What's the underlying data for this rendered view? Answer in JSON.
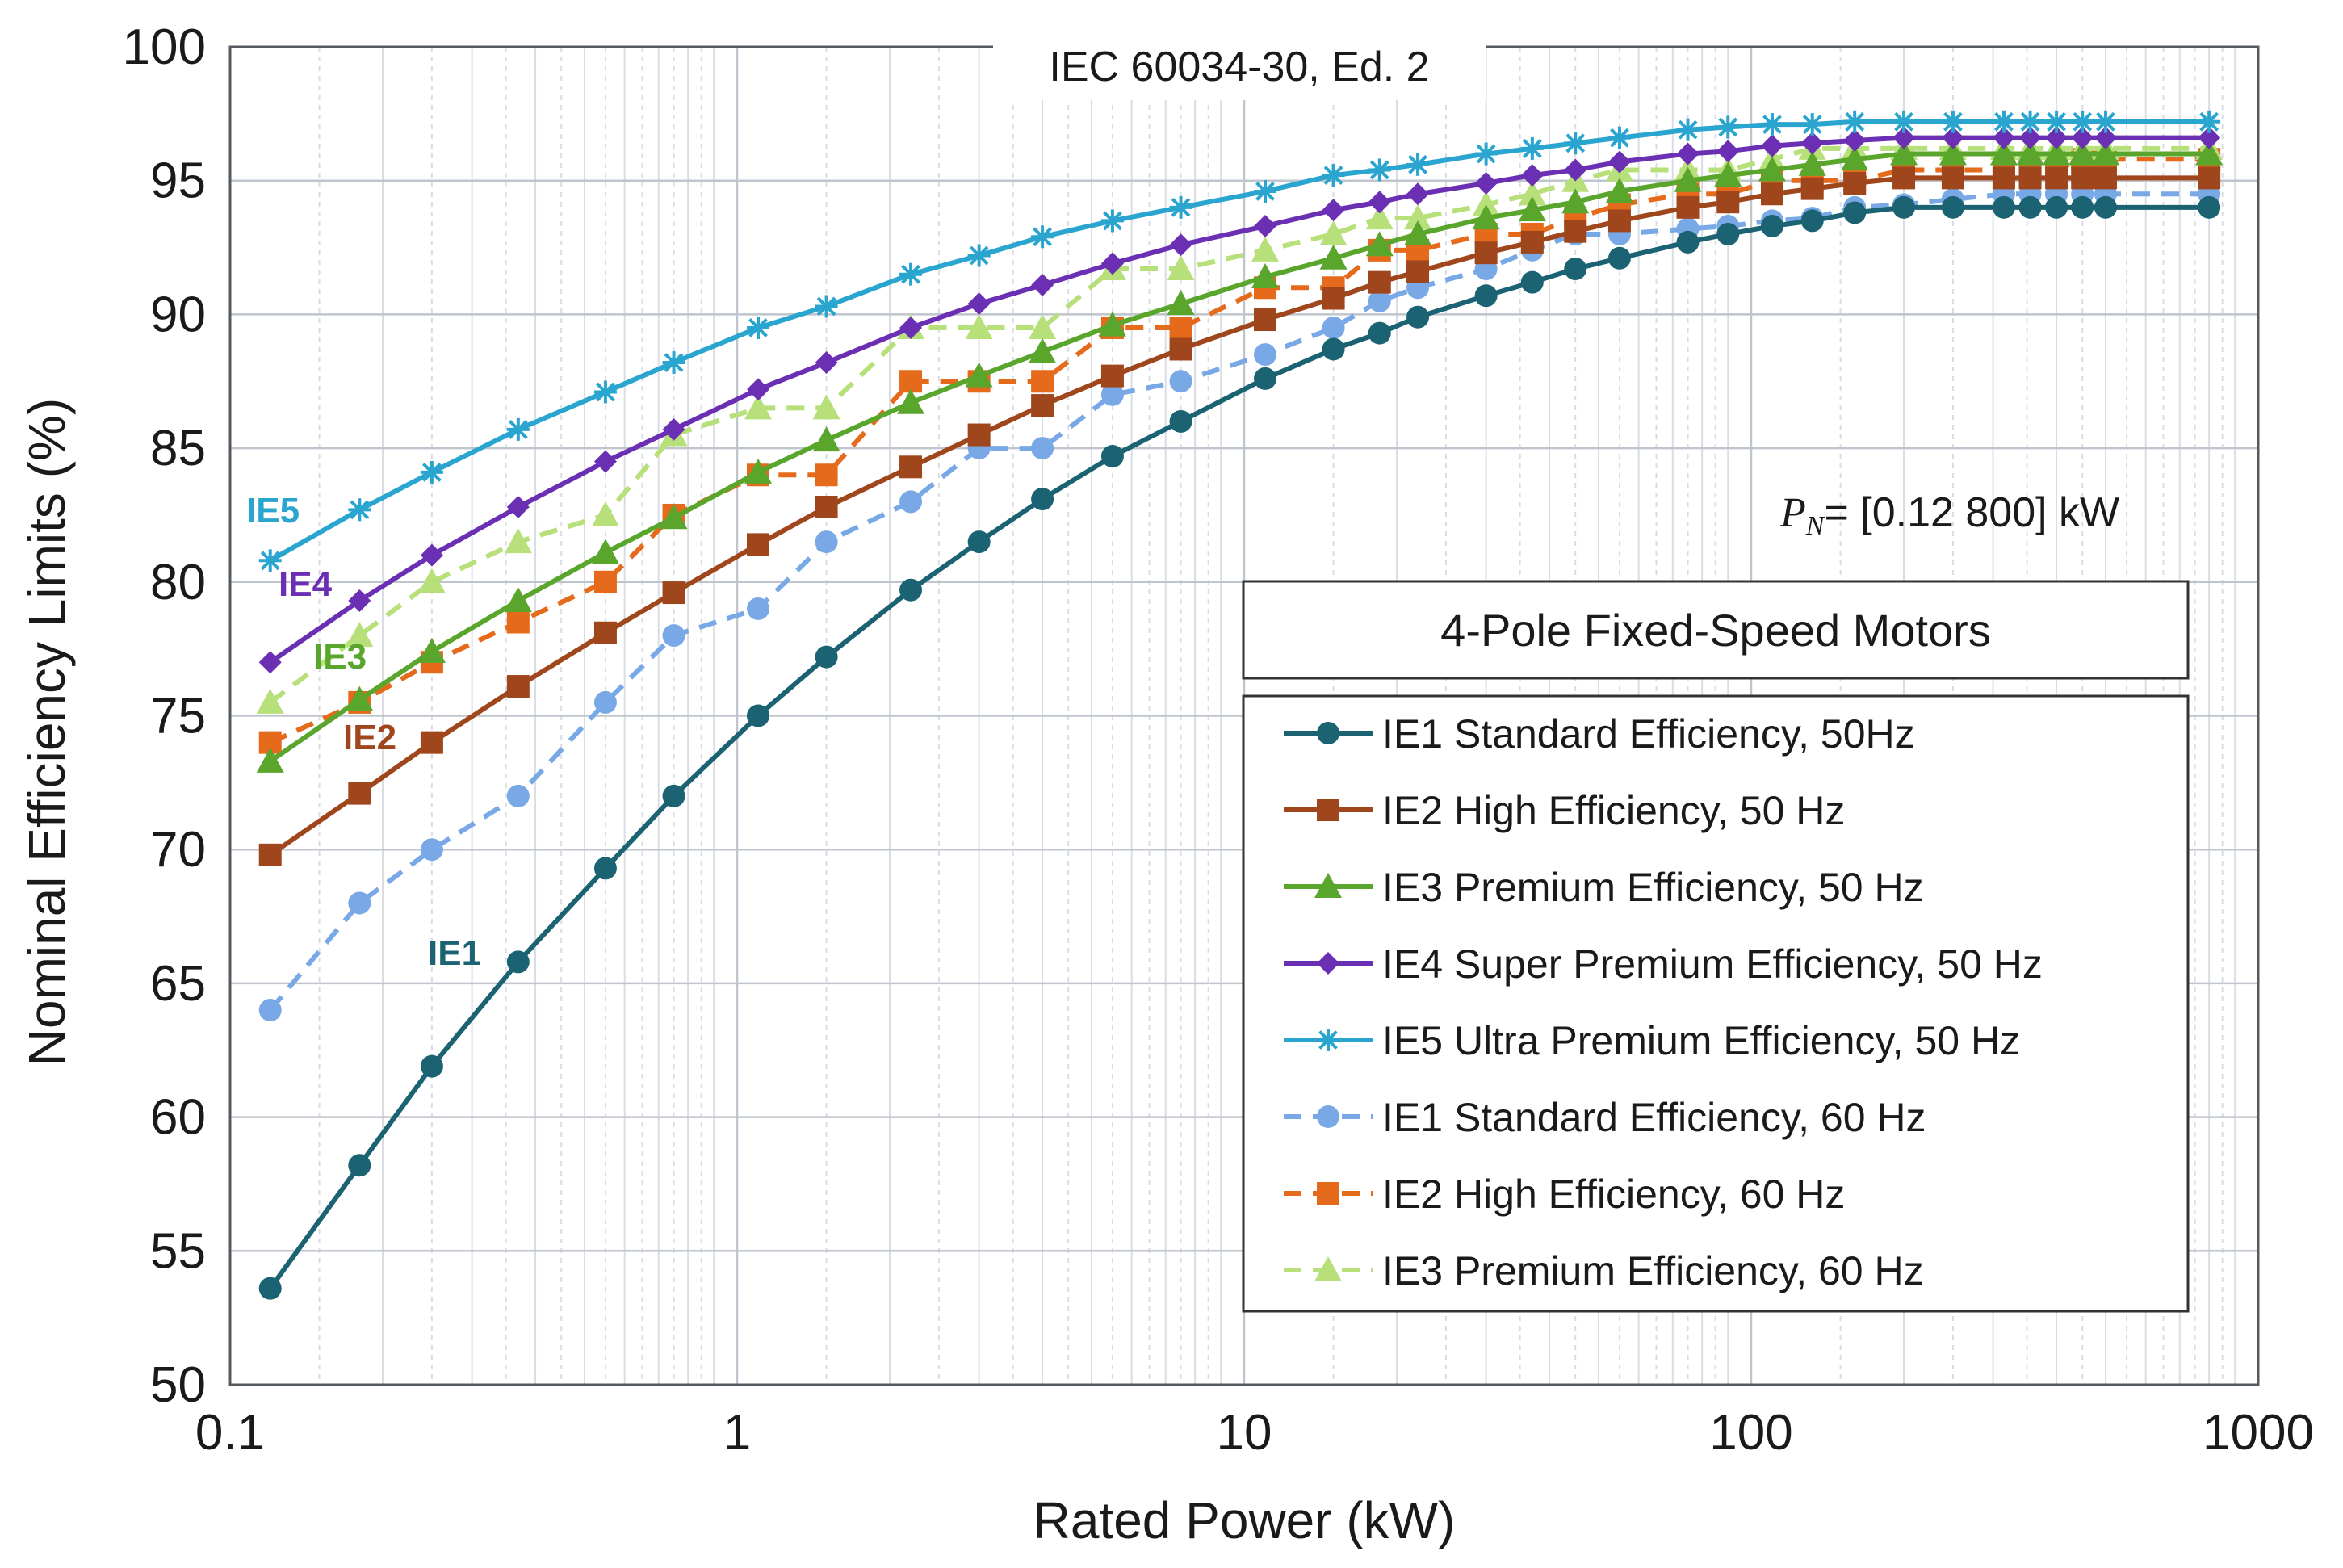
{
  "chart_data": {
    "type": "line",
    "title": "IEC 60034-30, Ed. 2",
    "xlabel": "Rated Power (kW)",
    "ylabel": "Nominal Efficiency Limits (%)",
    "x_scale": "log",
    "xlim": [
      0.1,
      1000
    ],
    "ylim": [
      50,
      100
    ],
    "x_ticks": [
      0.1,
      1,
      10,
      100,
      1000
    ],
    "x_tick_labels": [
      "0.1",
      "1",
      "10",
      "100",
      "1000"
    ],
    "y_ticks": [
      50,
      55,
      60,
      65,
      70,
      75,
      80,
      85,
      90,
      95,
      100
    ],
    "y_tick_labels": [
      "50",
      "55",
      "60",
      "65",
      "70",
      "75",
      "80",
      "85",
      "90",
      "95",
      "100"
    ],
    "grid": true,
    "legend_title": "4-Pole Fixed-Speed Motors",
    "legend_position": "bottom-right",
    "range_note": "= [0.12  800] kW",
    "range_symbol": "P",
    "range_symbol_sub": "N",
    "x": [
      0.12,
      0.18,
      0.25,
      0.37,
      0.55,
      0.75,
      1.1,
      1.5,
      2.2,
      3,
      4,
      5.5,
      7.5,
      11,
      15,
      18.5,
      22,
      30,
      37,
      45,
      55,
      75,
      90,
      110,
      132,
      160,
      200,
      250,
      315,
      355,
      400,
      450,
      500,
      800
    ],
    "series": [
      {
        "name": "IE1 Standard Efficiency, 50Hz",
        "annotation": "IE1",
        "color": "#1b6273",
        "dash": "solid",
        "marker": "circle",
        "values": [
          53.6,
          58.2,
          61.9,
          65.8,
          69.3,
          72.0,
          75.0,
          77.2,
          79.7,
          81.5,
          83.1,
          84.7,
          86.0,
          87.6,
          88.7,
          89.3,
          89.9,
          90.7,
          91.2,
          91.7,
          92.1,
          92.7,
          93.0,
          93.3,
          93.5,
          93.8,
          94.0,
          94.0,
          94.0,
          94.0,
          94.0,
          94.0,
          94.0,
          94.0
        ]
      },
      {
        "name": "IE2 High Efficiency, 50 Hz",
        "annotation": "IE2",
        "color": "#a0461c",
        "dash": "solid",
        "marker": "square",
        "values": [
          69.8,
          72.1,
          74.0,
          76.1,
          78.1,
          79.6,
          81.4,
          82.8,
          84.3,
          85.5,
          86.6,
          87.7,
          88.7,
          89.8,
          90.6,
          91.2,
          91.6,
          92.3,
          92.7,
          93.1,
          93.5,
          94.0,
          94.2,
          94.5,
          94.7,
          94.9,
          95.1,
          95.1,
          95.1,
          95.1,
          95.1,
          95.1,
          95.1,
          95.1
        ]
      },
      {
        "name": "IE3 Premium Efficiency, 50 Hz",
        "annotation": "IE3",
        "color": "#5aa62d",
        "dash": "solid",
        "marker": "triangle",
        "values": [
          73.3,
          75.6,
          77.4,
          79.3,
          81.1,
          82.4,
          84.1,
          85.3,
          86.7,
          87.7,
          88.6,
          89.6,
          90.4,
          91.4,
          92.1,
          92.6,
          93.0,
          93.6,
          93.9,
          94.2,
          94.6,
          95.0,
          95.2,
          95.4,
          95.6,
          95.8,
          96.0,
          96.0,
          96.0,
          96.0,
          96.0,
          96.0,
          96.0,
          96.0
        ]
      },
      {
        "name": "IE4 Super Premium Efficiency, 50 Hz",
        "annotation": "IE4",
        "color": "#6b2fb3",
        "dash": "solid",
        "marker": "diamond",
        "values": [
          77.0,
          79.3,
          81.0,
          82.8,
          84.5,
          85.7,
          87.2,
          88.2,
          89.5,
          90.4,
          91.1,
          91.9,
          92.6,
          93.3,
          93.9,
          94.2,
          94.5,
          94.9,
          95.2,
          95.4,
          95.7,
          96.0,
          96.1,
          96.3,
          96.4,
          96.5,
          96.6,
          96.6,
          96.6,
          96.6,
          96.6,
          96.6,
          96.6,
          96.6
        ]
      },
      {
        "name": "IE5 Ultra Premium Efficiency, 50 Hz",
        "annotation": "IE5",
        "color": "#2aa5cf",
        "dash": "solid",
        "marker": "star",
        "values": [
          80.8,
          82.7,
          84.1,
          85.7,
          87.1,
          88.2,
          89.5,
          90.3,
          91.5,
          92.2,
          92.9,
          93.5,
          94.0,
          94.6,
          95.2,
          95.4,
          95.6,
          96.0,
          96.2,
          96.4,
          96.6,
          96.9,
          97.0,
          97.1,
          97.1,
          97.2,
          97.2,
          97.2,
          97.2,
          97.2,
          97.2,
          97.2,
          97.2,
          97.2
        ]
      },
      {
        "name": "IE1 Standard Efficiency, 60 Hz",
        "color": "#79a8e6",
        "dash": "dashed",
        "marker": "circle",
        "values": [
          64.0,
          68.0,
          70.0,
          72.0,
          75.5,
          78.0,
          79.0,
          81.5,
          83.0,
          85.0,
          85.0,
          87.0,
          87.5,
          88.5,
          89.5,
          90.5,
          91.0,
          91.7,
          92.4,
          93.0,
          93.0,
          93.2,
          93.3,
          93.5,
          93.6,
          94.0,
          94.1,
          94.3,
          94.5,
          94.5,
          94.5,
          94.5,
          94.5,
          94.5
        ]
      },
      {
        "name": "IE2 High Efficiency, 60 Hz",
        "color": "#e56a1b",
        "dash": "dashed",
        "marker": "square",
        "values": [
          74.0,
          75.5,
          77.0,
          78.5,
          80.0,
          82.5,
          84.0,
          84.0,
          87.5,
          87.5,
          87.5,
          89.5,
          89.5,
          91.0,
          91.0,
          92.4,
          92.4,
          93.0,
          93.0,
          93.6,
          94.1,
          94.5,
          94.5,
          95.0,
          95.0,
          95.0,
          95.4,
          95.4,
          95.4,
          95.4,
          95.4,
          95.8,
          95.8,
          95.8
        ]
      },
      {
        "name": "IE3 Premium Efficiency, 60 Hz",
        "color": "#b8e07a",
        "dash": "dashed",
        "marker": "triangle",
        "values": [
          75.5,
          78.0,
          80.0,
          81.5,
          82.5,
          85.5,
          86.5,
          86.5,
          89.5,
          89.5,
          89.5,
          91.7,
          91.7,
          92.4,
          93.0,
          93.6,
          93.6,
          94.1,
          94.5,
          95.0,
          95.4,
          95.4,
          95.4,
          95.8,
          96.2,
          96.2,
          96.2,
          96.2,
          96.2,
          96.2,
          96.2,
          96.2,
          96.2,
          96.2
        ]
      }
    ]
  }
}
